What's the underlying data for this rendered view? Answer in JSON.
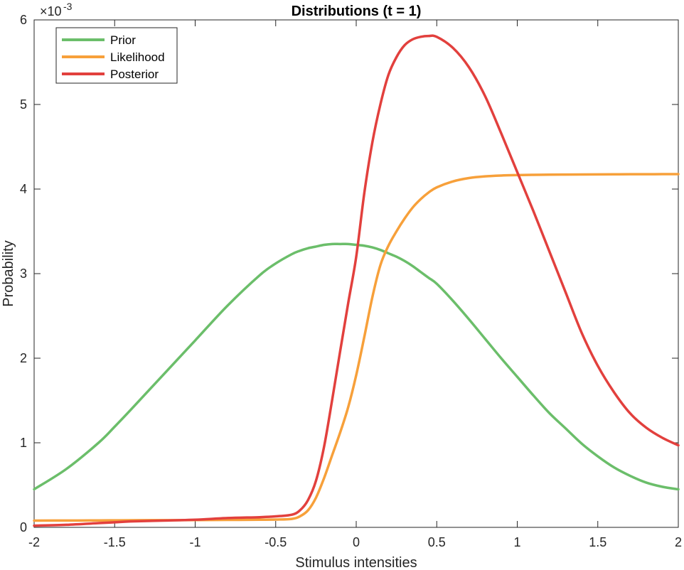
{
  "chart_data": {
    "type": "line",
    "title": "Distributions (t = 1)",
    "xlabel": "Stimulus intensities",
    "ylabel": "Probability",
    "y_scale_label": "×10",
    "y_scale_exponent": "-3",
    "xlim": [
      -2,
      2
    ],
    "ylim": [
      0,
      6
    ],
    "x_ticks": [
      "-2",
      "-1.5",
      "-1",
      "-0.5",
      "0",
      "0.5",
      "1",
      "1.5",
      "2"
    ],
    "y_ticks": [
      "0",
      "1",
      "2",
      "3",
      "4",
      "5",
      "6"
    ],
    "grid": false,
    "box": true,
    "legend_position": "top-left",
    "x": [
      -2.0,
      -1.8,
      -1.6,
      -1.5,
      -1.4,
      -1.2,
      -1.0,
      -0.8,
      -0.6,
      -0.5,
      -0.4,
      -0.35,
      -0.3,
      -0.25,
      -0.2,
      -0.15,
      -0.1,
      -0.05,
      0.0,
      0.05,
      0.1,
      0.15,
      0.2,
      0.25,
      0.3,
      0.35,
      0.4,
      0.45,
      0.5,
      0.6,
      0.7,
      0.8,
      0.9,
      1.0,
      1.1,
      1.2,
      1.3,
      1.4,
      1.5,
      1.6,
      1.7,
      1.8,
      1.9,
      2.0
    ],
    "series": [
      {
        "name": "Prior",
        "color": "#6BBE6A",
        "values": [
          0.45,
          0.69,
          1.0,
          1.19,
          1.39,
          1.8,
          2.21,
          2.62,
          2.98,
          3.12,
          3.23,
          3.27,
          3.3,
          3.32,
          3.34,
          3.35,
          3.35,
          3.35,
          3.34,
          3.33,
          3.31,
          3.28,
          3.24,
          3.2,
          3.15,
          3.09,
          3.02,
          2.95,
          2.88,
          2.68,
          2.46,
          2.23,
          2.0,
          1.78,
          1.56,
          1.35,
          1.17,
          0.99,
          0.84,
          0.71,
          0.61,
          0.53,
          0.48,
          0.45
        ]
      },
      {
        "name": "Likelihood",
        "color": "#F7A03A",
        "values": [
          0.08,
          0.081,
          0.082,
          0.083,
          0.084,
          0.085,
          0.086,
          0.088,
          0.09,
          0.092,
          0.1,
          0.13,
          0.2,
          0.35,
          0.58,
          0.85,
          1.12,
          1.42,
          1.8,
          2.25,
          2.72,
          3.1,
          3.33,
          3.5,
          3.65,
          3.78,
          3.88,
          3.96,
          4.02,
          4.09,
          4.13,
          4.15,
          4.16,
          4.165,
          4.168,
          4.17,
          4.171,
          4.172,
          4.173,
          4.174,
          4.175,
          4.175,
          4.176,
          4.176
        ]
      },
      {
        "name": "Posterior",
        "color": "#E2403D",
        "values": [
          0.02,
          0.03,
          0.05,
          0.06,
          0.07,
          0.08,
          0.09,
          0.11,
          0.12,
          0.13,
          0.15,
          0.2,
          0.32,
          0.55,
          0.95,
          1.5,
          2.08,
          2.65,
          3.2,
          3.95,
          4.55,
          5.0,
          5.35,
          5.56,
          5.7,
          5.77,
          5.8,
          5.81,
          5.8,
          5.67,
          5.44,
          5.1,
          4.66,
          4.2,
          3.74,
          3.26,
          2.78,
          2.3,
          1.91,
          1.6,
          1.35,
          1.18,
          1.06,
          0.97
        ]
      }
    ]
  }
}
